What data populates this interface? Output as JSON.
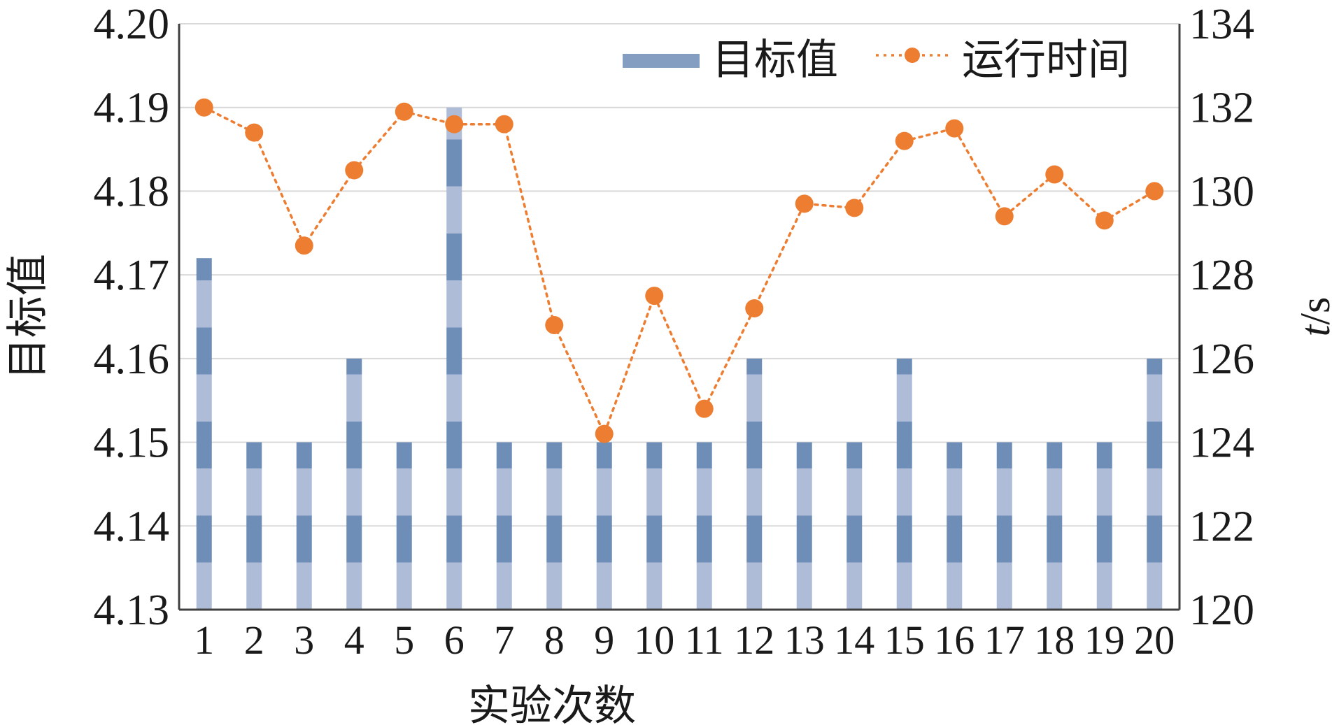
{
  "chart_data": {
    "type": "bar",
    "categories": [
      "1",
      "2",
      "3",
      "4",
      "5",
      "6",
      "7",
      "8",
      "9",
      "10",
      "11",
      "12",
      "13",
      "14",
      "15",
      "16",
      "17",
      "18",
      "19",
      "20"
    ],
    "series": [
      {
        "name": "目标值",
        "type": "bar",
        "axis": "left",
        "values": [
          4.172,
          4.15,
          4.15,
          4.16,
          4.15,
          4.19,
          4.15,
          4.15,
          4.15,
          4.15,
          4.15,
          4.16,
          4.15,
          4.15,
          4.16,
          4.15,
          4.15,
          4.15,
          4.15,
          4.16
        ]
      },
      {
        "name": "运行时间",
        "type": "line",
        "axis": "right",
        "values": [
          132.0,
          131.4,
          128.7,
          130.5,
          131.9,
          131.6,
          131.6,
          126.8,
          124.2,
          127.5,
          124.8,
          127.2,
          129.7,
          129.6,
          131.2,
          131.5,
          129.4,
          130.4,
          129.3,
          130.0
        ]
      }
    ],
    "xlabel": "实验次数",
    "ylabel": "目标值",
    "y2label_italic": "t",
    "y2label_rest": "/s",
    "ylim": [
      4.13,
      4.2
    ],
    "y2lim": [
      120,
      134
    ],
    "yticks": [
      "4.13",
      "4.14",
      "4.15",
      "4.16",
      "4.17",
      "4.18",
      "4.19",
      "4.20"
    ],
    "y2ticks": [
      "120",
      "122",
      "124",
      "126",
      "128",
      "130",
      "132",
      "134"
    ],
    "grid": true,
    "legend_position": "top-right",
    "colors": {
      "bar_light": "#aebcd8",
      "bar_dark": "#6e8db7",
      "line": "#ed7d31",
      "grid": "#d9d9d9",
      "axis": "#404040"
    }
  }
}
